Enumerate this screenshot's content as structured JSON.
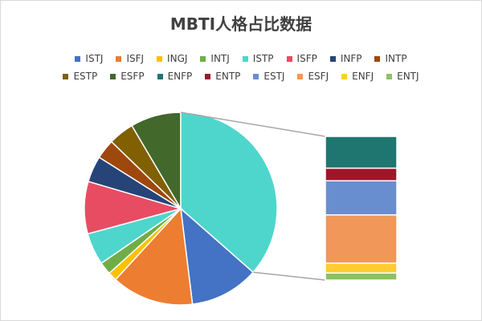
{
  "chart_data": {
    "type": "pie",
    "subtype": "pie-of-bar",
    "title": "MBTI人格占比数据",
    "legend_position": "top",
    "series": [
      {
        "name": "ISTJ",
        "value": 11.6,
        "color": "#4472c4"
      },
      {
        "name": "ISFJ",
        "value": 13.8,
        "color": "#ed7d31"
      },
      {
        "name": "INGJ",
        "value": 1.5,
        "color": "#ffc000"
      },
      {
        "name": "INTJ",
        "value": 2.1,
        "color": "#70ad47"
      },
      {
        "name": "ISTP",
        "value": 5.4,
        "color": "#4ed6cc"
      },
      {
        "name": "ISFP",
        "value": 8.8,
        "color": "#e84c63"
      },
      {
        "name": "INFP",
        "value": 4.4,
        "color": "#264478"
      },
      {
        "name": "INTP",
        "value": 3.3,
        "color": "#9e480e"
      },
      {
        "name": "ESTP",
        "value": 4.3,
        "color": "#806000"
      },
      {
        "name": "ESFP",
        "value": 8.5,
        "color": "#43682b"
      },
      {
        "name": "ENFP",
        "value": 8.1,
        "color": "#1f7670"
      },
      {
        "name": "ENTP",
        "value": 3.2,
        "color": "#a0152a"
      },
      {
        "name": "ESTJ",
        "value": 8.7,
        "color": "#698ed0"
      },
      {
        "name": "ESFJ",
        "value": 12.3,
        "color": "#f1975a"
      },
      {
        "name": "ENFJ",
        "value": 2.5,
        "color": "#ffcd33"
      },
      {
        "name": "ENTJ",
        "value": 1.8,
        "color": "#8cc168"
      }
    ],
    "pie_series_count": 10,
    "bar_series_count": 6
  }
}
